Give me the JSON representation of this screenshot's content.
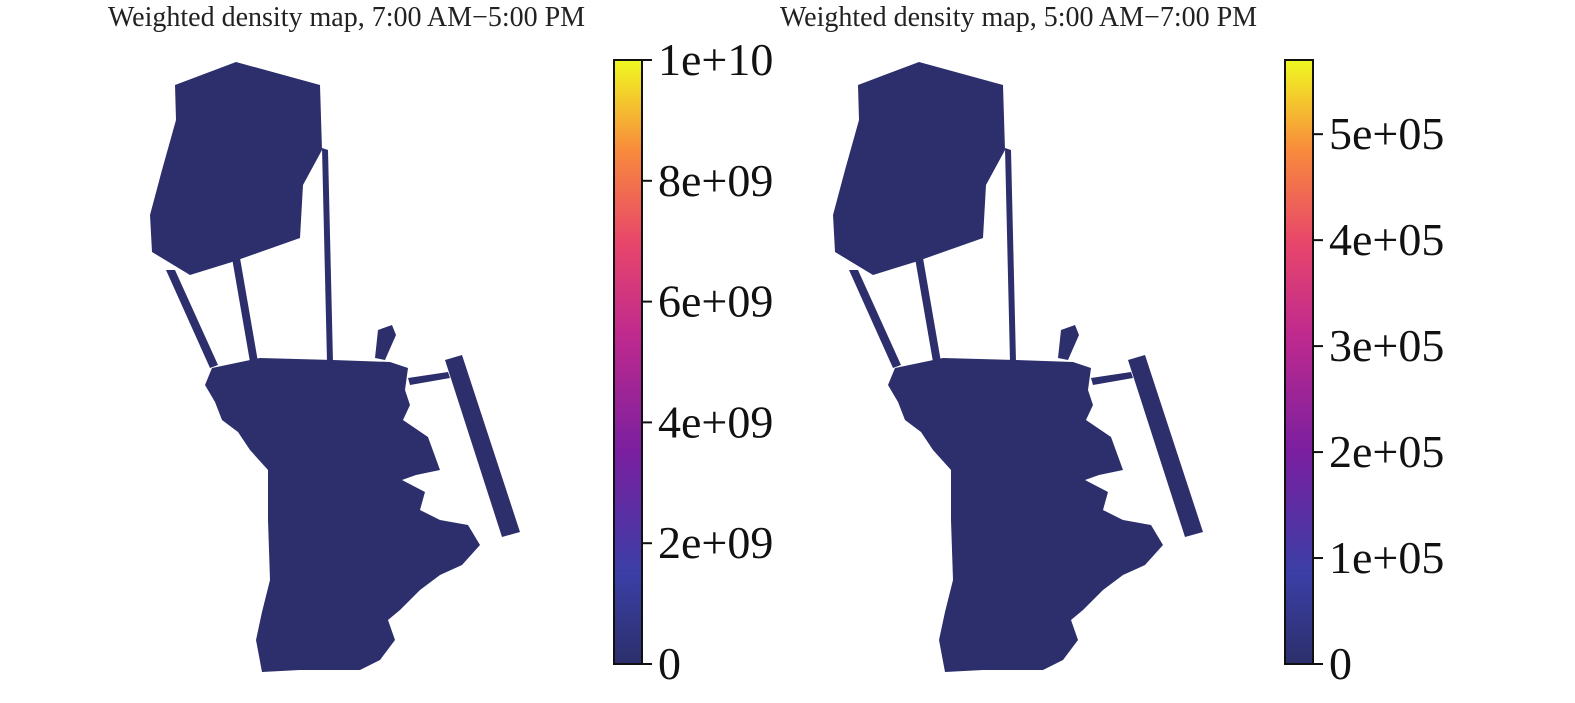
{
  "panels": [
    {
      "title": "Weighted density map, 7:00 AM−5:00 PM",
      "colorbar": {
        "min": 0,
        "max": 10000000000,
        "ticks": [
          {
            "value": 0,
            "label": "0"
          },
          {
            "value": 2000000000,
            "label": "2e+09"
          },
          {
            "value": 4000000000,
            "label": "4e+09"
          },
          {
            "value": 6000000000,
            "label": "6e+09"
          },
          {
            "value": 8000000000,
            "label": "8e+09"
          },
          {
            "value": 10000000000,
            "label": "1e+10"
          }
        ]
      },
      "colormap": "plasma"
    },
    {
      "title": "Weighted density map, 5:00 AM−7:00 PM",
      "colorbar": {
        "min": 0,
        "max": 570000,
        "ticks": [
          {
            "value": 0,
            "label": "0"
          },
          {
            "value": 100000,
            "label": "1e+05"
          },
          {
            "value": 200000,
            "label": "2e+05"
          },
          {
            "value": 300000,
            "label": "3e+05"
          },
          {
            "value": 400000,
            "label": "4e+05"
          },
          {
            "value": 500000,
            "label": "5e+05"
          }
        ]
      },
      "colormap": "plasma"
    }
  ],
  "colors": {
    "base": "#2c2f6b",
    "low": "#3a3a9a",
    "mid": "#c0218c",
    "high": "#f58f3b",
    "top": "#f0f921"
  }
}
